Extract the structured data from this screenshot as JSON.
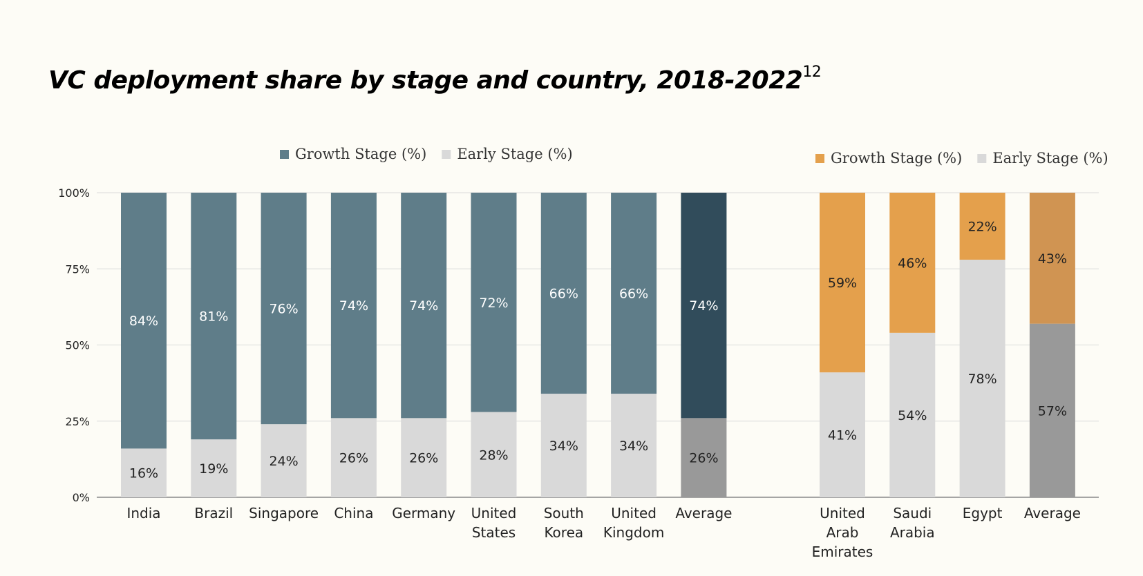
{
  "title": "VC deployment share by stage and country, 2018-2022",
  "title_superscript": "12",
  "chart_data": [
    {
      "type": "bar",
      "stacked": true,
      "categories": [
        "India",
        "Brazil",
        "Singapore",
        "China",
        "Germany",
        "United States",
        "South Korea",
        "United Kingdom",
        "Average"
      ],
      "series": [
        {
          "name": "Growth Stage (%)",
          "values": [
            84,
            81,
            76,
            74,
            74,
            72,
            66,
            66,
            74
          ],
          "color": "#5f7d89",
          "highlight_color": "#314c5b"
        },
        {
          "name": "Early Stage (%)",
          "values": [
            16,
            19,
            24,
            26,
            26,
            28,
            34,
            34,
            26
          ],
          "color": "#d9d9d9",
          "highlight_color": "#999999"
        }
      ],
      "highlight_category": "Average",
      "y_ticks": [
        "0%",
        "25%",
        "50%",
        "75%",
        "100%"
      ],
      "ylim": [
        0,
        100
      ],
      "grid": true,
      "legend_position": "top"
    },
    {
      "type": "bar",
      "stacked": true,
      "categories": [
        "United Arab Emirates",
        "Saudi Arabia",
        "Egypt",
        "Average"
      ],
      "series": [
        {
          "name": "Growth Stage (%)",
          "values": [
            59,
            46,
            22,
            43
          ],
          "color": "#e4a04c",
          "highlight_color": "#d09452"
        },
        {
          "name": "Early Stage (%)",
          "values": [
            41,
            54,
            78,
            57
          ],
          "color": "#d9d9d9",
          "highlight_color": "#999999"
        }
      ],
      "highlight_category": "Average",
      "ylim": [
        0,
        100
      ],
      "grid": true,
      "legend_position": "top"
    }
  ]
}
